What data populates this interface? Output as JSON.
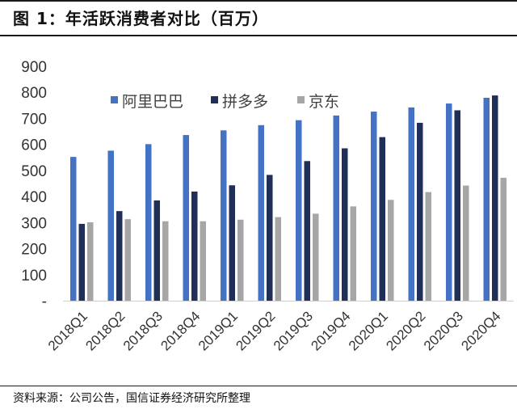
{
  "header": {
    "title": "图 1：年活跃消费者对比（百万）"
  },
  "footer": {
    "source": "资料来源：公司公告，国信证券经济研究所整理"
  },
  "chart_data": {
    "type": "bar",
    "title": "图 1：年活跃消费者对比（百万）",
    "xlabel": "",
    "ylabel": "",
    "ylim": [
      0,
      900
    ],
    "yticks": [
      "-",
      "100",
      "200",
      "300",
      "400",
      "500",
      "600",
      "700",
      "800",
      "900"
    ],
    "categories": [
      "2018Q1",
      "2018Q2",
      "2018Q3",
      "2018Q4",
      "2019Q1",
      "2019Q2",
      "2019Q3",
      "2019Q4",
      "2020Q1",
      "2020Q2",
      "2020Q3",
      "2020Q4"
    ],
    "series": [
      {
        "name": "阿里巴巴",
        "color": "#4472C4",
        "values": [
          552,
          576,
          601,
          636,
          654,
          674,
          693,
          711,
          726,
          742,
          757,
          779
        ]
      },
      {
        "name": "拼多多",
        "color": "#1F2F57",
        "values": [
          295,
          344,
          385,
          419,
          443,
          483,
          536,
          585,
          628,
          683,
          731,
          788
        ]
      },
      {
        "name": "京东",
        "color": "#A6A6A6",
        "values": [
          301,
          313,
          305,
          305,
          311,
          321,
          334,
          362,
          387,
          417,
          442,
          472
        ]
      }
    ],
    "legend": "top-left",
    "grid": false
  }
}
